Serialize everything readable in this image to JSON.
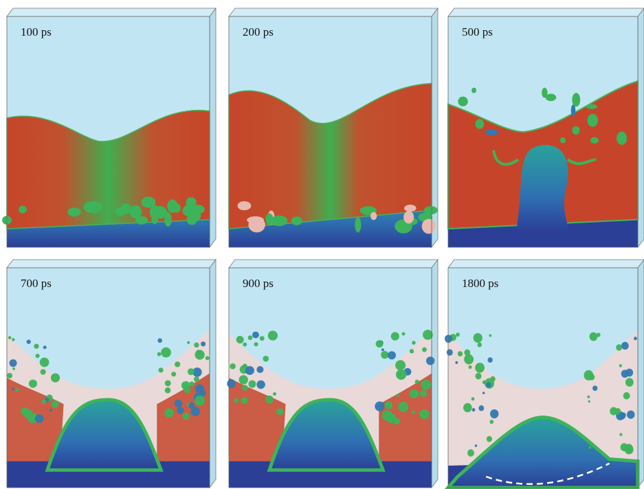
{
  "panels": [
    {
      "label": "100 ps"
    },
    {
      "label": "200 ps"
    },
    {
      "label": "500 ps"
    },
    {
      "label": "700 ps"
    },
    {
      "label": "900 ps"
    },
    {
      "label": "1800 ps"
    }
  ]
}
